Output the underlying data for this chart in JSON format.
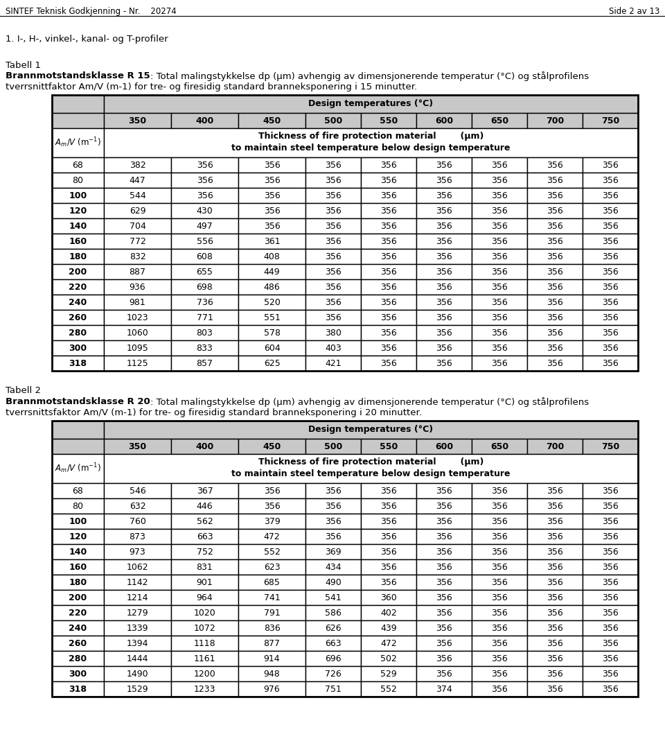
{
  "header_left": "SINTEF Teknisk Godkjenning - Nr.    20274",
  "header_right": "Side 2 av 13",
  "section_title": "1. I-, H-, vinkel-, kanal- og T-profiler",
  "table1_label": "Tabell 1",
  "table1_bold": "Brannmotstandsklasse R 15",
  "table1_rest1": ": Total malingstykkelse d",
  "table1_sub_p": "p",
  "table1_rest2": " (μm) avhengig av dimensjonerende temperatur (°C) og stålprofilens",
  "table1_line2": "tverrsnittfaktor A",
  "table1_sub_m": "m",
  "table1_line2b": "/V (m",
  "table1_sup": "-1",
  "table1_line2c": ") for tre- og firesidig standard branneksponering i 15 minutter.",
  "table2_label": "Tabell 2",
  "table2_bold": "Brannmotstandsklasse R 20",
  "table2_rest1": ": Total malingstykkelse d",
  "table2_sub_p": "p",
  "table2_rest2": " (μm) avhengig av dimensjonerende temperatur (°C) og stålprofilens",
  "table2_line2": "tverrsnittsfaktor A",
  "table2_sub_m": "m",
  "table2_line2b": "/V (m",
  "table2_sup": "-1",
  "table2_line2c": ") for tre- og firesidig standard branneksponering i 20 minutter.",
  "col_header1": "Design temperatures (°C)",
  "col_temp": [
    "350",
    "400",
    "450",
    "500",
    "550",
    "600",
    "650",
    "700",
    "750"
  ],
  "col_desc1": "Thickness of fire protection material",
  "col_desc2": "(μm)",
  "col_desc3": "to maintain steel temperature below design temperature",
  "am_label": "A",
  "am_sub": "m",
  "am_label2": "/V (m",
  "am_sup": "-1",
  "am_label3": ")",
  "table1_am_col": [
    68,
    80,
    100,
    120,
    140,
    160,
    180,
    200,
    220,
    240,
    260,
    280,
    300,
    318
  ],
  "table1_bold_from": 2,
  "table1_data": [
    [
      382,
      356,
      356,
      356,
      356,
      356,
      356,
      356,
      356
    ],
    [
      447,
      356,
      356,
      356,
      356,
      356,
      356,
      356,
      356
    ],
    [
      544,
      356,
      356,
      356,
      356,
      356,
      356,
      356,
      356
    ],
    [
      629,
      430,
      356,
      356,
      356,
      356,
      356,
      356,
      356
    ],
    [
      704,
      497,
      356,
      356,
      356,
      356,
      356,
      356,
      356
    ],
    [
      772,
      556,
      361,
      356,
      356,
      356,
      356,
      356,
      356
    ],
    [
      832,
      608,
      408,
      356,
      356,
      356,
      356,
      356,
      356
    ],
    [
      887,
      655,
      449,
      356,
      356,
      356,
      356,
      356,
      356
    ],
    [
      936,
      698,
      486,
      356,
      356,
      356,
      356,
      356,
      356
    ],
    [
      981,
      736,
      520,
      356,
      356,
      356,
      356,
      356,
      356
    ],
    [
      1023,
      771,
      551,
      356,
      356,
      356,
      356,
      356,
      356
    ],
    [
      1060,
      803,
      578,
      380,
      356,
      356,
      356,
      356,
      356
    ],
    [
      1095,
      833,
      604,
      403,
      356,
      356,
      356,
      356,
      356
    ],
    [
      1125,
      857,
      625,
      421,
      356,
      356,
      356,
      356,
      356
    ]
  ],
  "table2_am_col": [
    68,
    80,
    100,
    120,
    140,
    160,
    180,
    200,
    220,
    240,
    260,
    280,
    300,
    318
  ],
  "table2_bold_from": 2,
  "table2_data": [
    [
      546,
      367,
      356,
      356,
      356,
      356,
      356,
      356,
      356
    ],
    [
      632,
      446,
      356,
      356,
      356,
      356,
      356,
      356,
      356
    ],
    [
      760,
      562,
      379,
      356,
      356,
      356,
      356,
      356,
      356
    ],
    [
      873,
      663,
      472,
      356,
      356,
      356,
      356,
      356,
      356
    ],
    [
      973,
      752,
      552,
      369,
      356,
      356,
      356,
      356,
      356
    ],
    [
      1062,
      831,
      623,
      434,
      356,
      356,
      356,
      356,
      356
    ],
    [
      1142,
      901,
      685,
      490,
      356,
      356,
      356,
      356,
      356
    ],
    [
      1214,
      964,
      741,
      541,
      360,
      356,
      356,
      356,
      356
    ],
    [
      1279,
      1020,
      791,
      586,
      402,
      356,
      356,
      356,
      356
    ],
    [
      1339,
      1072,
      836,
      626,
      439,
      356,
      356,
      356,
      356
    ],
    [
      1394,
      1118,
      877,
      663,
      472,
      356,
      356,
      356,
      356
    ],
    [
      1444,
      1161,
      914,
      696,
      502,
      356,
      356,
      356,
      356
    ],
    [
      1490,
      1200,
      948,
      726,
      529,
      356,
      356,
      356,
      356
    ],
    [
      1529,
      1233,
      976,
      751,
      552,
      374,
      356,
      356,
      356
    ]
  ],
  "bg_gray": "#c8c8c8",
  "bg_white": "#ffffff",
  "fs_page": 8.5,
  "fs_body": 9.5,
  "fs_table_header": 9,
  "fs_table_cell": 9,
  "fs_label": 9.5
}
